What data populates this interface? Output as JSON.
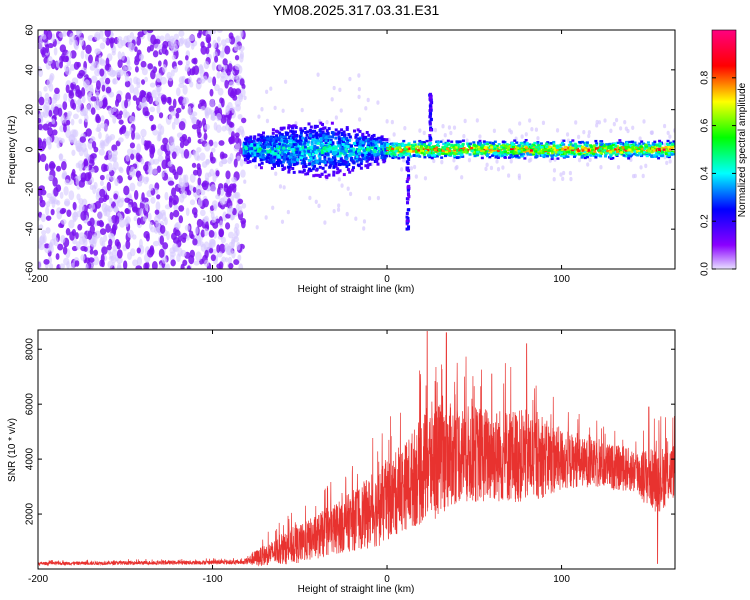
{
  "title": "YM08.2025.317.03.31.E31",
  "colors": {
    "snr_line": "#e8322f",
    "scatter_dot": "#7a12ef",
    "colormap": [
      "#e8e0ff",
      "#8a00ff",
      "#0000ff",
      "#00ffff",
      "#00ff00",
      "#ffff00",
      "#ff0000",
      "#ff0080"
    ]
  },
  "chart_data": [
    {
      "type": "heatmap",
      "xlabel": "Height of straight line (km)",
      "ylabel": "Frequency (Hz)",
      "xlim": [
        -200,
        165
      ],
      "ylim": [
        -60,
        60
      ],
      "xticks": [
        -200,
        -100,
        0,
        100
      ],
      "yticks": [
        -60,
        -40,
        -20,
        0,
        20,
        40,
        60
      ],
      "colorbar": {
        "label": "Normalized spectral amplitude",
        "range": [
          0.0,
          1.0
        ],
        "ticks": [
          0.0,
          0.2,
          0.4,
          0.6,
          0.8
        ]
      },
      "regions": [
        {
          "x_range": [
            -200,
            -82
          ],
          "freq_range": [
            -60,
            60
          ],
          "amplitude": 0.1
        },
        {
          "x_range": [
            -82,
            0
          ],
          "freq_center": 0,
          "half_width_hz": 15,
          "amplitude": 0.3
        },
        {
          "x_range": [
            0,
            165
          ],
          "freq_center": 0,
          "half_width_hz": 3,
          "amplitude": 0.7
        }
      ],
      "features": [
        {
          "x": 12,
          "freq_range": [
            -40,
            -5
          ]
        },
        {
          "x": 25,
          "freq_range": [
            5,
            28
          ]
        }
      ]
    },
    {
      "type": "line",
      "xlabel": "Height of straight line (km)",
      "ylabel": "SNR (10 * v/v)",
      "xlim": [
        -200,
        165
      ],
      "ylim": [
        0,
        8700
      ],
      "xticks": [
        -200,
        -100,
        0,
        100
      ],
      "yticks": [
        2000,
        4000,
        6000,
        8000
      ],
      "envelope": [
        {
          "x": -200,
          "base": 200,
          "spread": 60
        },
        {
          "x": -82,
          "base": 250,
          "spread": 80
        },
        {
          "x": -75,
          "base": 400,
          "spread": 300
        },
        {
          "x": -50,
          "base": 900,
          "spread": 700
        },
        {
          "x": -25,
          "base": 1600,
          "spread": 1000
        },
        {
          "x": -5,
          "base": 2200,
          "spread": 1400
        },
        {
          "x": 10,
          "base": 3000,
          "spread": 1600
        },
        {
          "x": 25,
          "base": 3900,
          "spread": 2200
        },
        {
          "x": 40,
          "base": 4200,
          "spread": 1800
        },
        {
          "x": 80,
          "base": 4100,
          "spread": 1700
        },
        {
          "x": 110,
          "base": 3900,
          "spread": 900
        },
        {
          "x": 140,
          "base": 3600,
          "spread": 800
        },
        {
          "x": 155,
          "base": 3200,
          "spread": 1200
        },
        {
          "x": 165,
          "base": 3600,
          "spread": 1000
        }
      ],
      "peaks": [
        {
          "x": 23,
          "y": 8650
        },
        {
          "x": 34,
          "y": 8600
        },
        {
          "x": 80,
          "y": 8200
        },
        {
          "x": 60,
          "y": 7100
        },
        {
          "x": 150,
          "y": 5900
        },
        {
          "x": 155,
          "y": 200
        }
      ]
    }
  ]
}
